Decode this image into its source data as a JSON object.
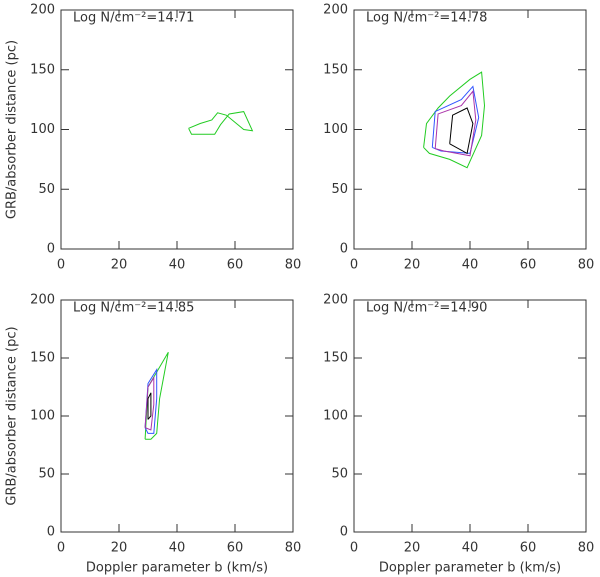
{
  "chart_data": [
    {
      "type": "line",
      "title": "Log N/cm⁻²=14.71",
      "ylabel": "GRB/absorber distance (pc)",
      "xlim": [
        0,
        80
      ],
      "ylim": [
        0,
        200
      ],
      "xticks": [
        0,
        20,
        40,
        60,
        80
      ],
      "yticks": [
        0,
        50,
        100,
        150,
        200
      ],
      "series": [
        {
          "color": "#22cc22",
          "x": [
            44,
            45,
            53,
            55,
            58,
            63,
            66,
            63,
            57,
            54,
            52,
            48,
            44
          ],
          "y": [
            101,
            96,
            96,
            104,
            113,
            115,
            99,
            100,
            112,
            114,
            108,
            105,
            101
          ]
        }
      ]
    },
    {
      "type": "line",
      "title": "Log N/cm⁻²=14.78",
      "xlim": [
        0,
        80
      ],
      "ylim": [
        0,
        200
      ],
      "xticks": [
        0,
        20,
        40,
        60,
        80
      ],
      "yticks": [
        0,
        50,
        100,
        150,
        200
      ],
      "series": [
        {
          "color": "#22cc22",
          "x": [
            24,
            25,
            29,
            33,
            40,
            44,
            45,
            44,
            39,
            33,
            26,
            24
          ],
          "y": [
            85,
            105,
            118,
            128,
            142,
            148,
            120,
            95,
            68,
            75,
            80,
            85
          ]
        },
        {
          "color": "#3355ff",
          "x": [
            27,
            28,
            37,
            41,
            43,
            40,
            30,
            27
          ],
          "y": [
            85,
            115,
            125,
            136,
            110,
            80,
            82,
            85
          ]
        },
        {
          "color": "#aa33aa",
          "x": [
            28,
            29,
            37,
            41,
            42,
            40,
            31,
            28
          ],
          "y": [
            84,
            113,
            120,
            132,
            108,
            78,
            82,
            84
          ]
        },
        {
          "color": "#000000",
          "x": [
            33,
            34,
            39,
            41,
            39,
            33
          ],
          "y": [
            88,
            112,
            118,
            105,
            80,
            88
          ]
        }
      ]
    },
    {
      "type": "line",
      "title": "Log N/cm⁻²=14.85",
      "xlabel": "Doppler parameter b (km/s)",
      "ylabel": "GRB/absorber distance (pc)",
      "xlim": [
        0,
        80
      ],
      "ylim": [
        0,
        200
      ],
      "xticks": [
        0,
        20,
        40,
        60,
        80
      ],
      "yticks": [
        0,
        50,
        100,
        150,
        200
      ],
      "series": [
        {
          "color": "#22cc22",
          "x": [
            29,
            30,
            37,
            34,
            33,
            31,
            29
          ],
          "y": [
            80,
            125,
            155,
            115,
            85,
            80,
            80
          ]
        },
        {
          "color": "#3355ff",
          "x": [
            29,
            30,
            33,
            33,
            32,
            30,
            29
          ],
          "y": [
            90,
            128,
            140,
            115,
            85,
            85,
            90
          ]
        },
        {
          "color": "#aa33aa",
          "x": [
            29,
            30,
            32,
            32,
            31,
            29
          ],
          "y": [
            90,
            125,
            133,
            110,
            88,
            90
          ]
        },
        {
          "color": "#000000",
          "x": [
            30,
            30,
            31,
            31,
            30
          ],
          "y": [
            97,
            115,
            120,
            100,
            97
          ]
        }
      ]
    },
    {
      "type": "line",
      "title": "Log N/cm⁻²=14.90",
      "xlabel": "Doppler parameter b (km/s)",
      "xlim": [
        0,
        80
      ],
      "ylim": [
        0,
        200
      ],
      "xticks": [
        0,
        20,
        40,
        60,
        80
      ],
      "yticks": [
        0,
        50,
        100,
        150,
        200
      ],
      "series": []
    }
  ]
}
